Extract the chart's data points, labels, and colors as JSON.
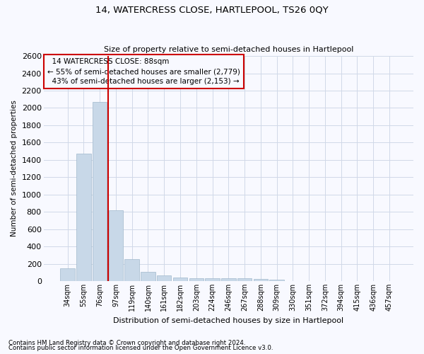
{
  "title": "14, WATERCRESS CLOSE, HARTLEPOOL, TS26 0QY",
  "subtitle": "Size of property relative to semi-detached houses in Hartlepool",
  "xlabel": "Distribution of semi-detached houses by size in Hartlepool",
  "ylabel": "Number of semi-detached properties",
  "property_label": "14 WATERCRESS CLOSE: 88sqm",
  "pct_smaller": 55,
  "n_smaller": 2779,
  "pct_larger": 43,
  "n_larger": 2153,
  "bar_color": "#c8d8e8",
  "bar_edge_color": "#a0b8cc",
  "vline_color": "#cc0000",
  "annotation_box_edge": "#cc0000",
  "grid_color": "#d0d8e8",
  "background_color": "#f8f9ff",
  "categories": [
    "34sqm",
    "55sqm",
    "76sqm",
    "97sqm",
    "119sqm",
    "140sqm",
    "161sqm",
    "182sqm",
    "203sqm",
    "224sqm",
    "246sqm",
    "267sqm",
    "288sqm",
    "309sqm",
    "330sqm",
    "351sqm",
    "372sqm",
    "394sqm",
    "415sqm",
    "436sqm",
    "457sqm"
  ],
  "values": [
    150,
    1470,
    2070,
    820,
    250,
    110,
    65,
    40,
    30,
    30,
    30,
    30,
    25,
    15,
    0,
    0,
    0,
    0,
    0,
    0,
    0
  ],
  "ylim": [
    0,
    2600
  ],
  "yticks": [
    0,
    200,
    400,
    600,
    800,
    1000,
    1200,
    1400,
    1600,
    1800,
    2000,
    2200,
    2400,
    2600
  ],
  "vline_x_index": 2.5,
  "footnote1": "Contains HM Land Registry data © Crown copyright and database right 2024.",
  "footnote2": "Contains public sector information licensed under the Open Government Licence v3.0."
}
